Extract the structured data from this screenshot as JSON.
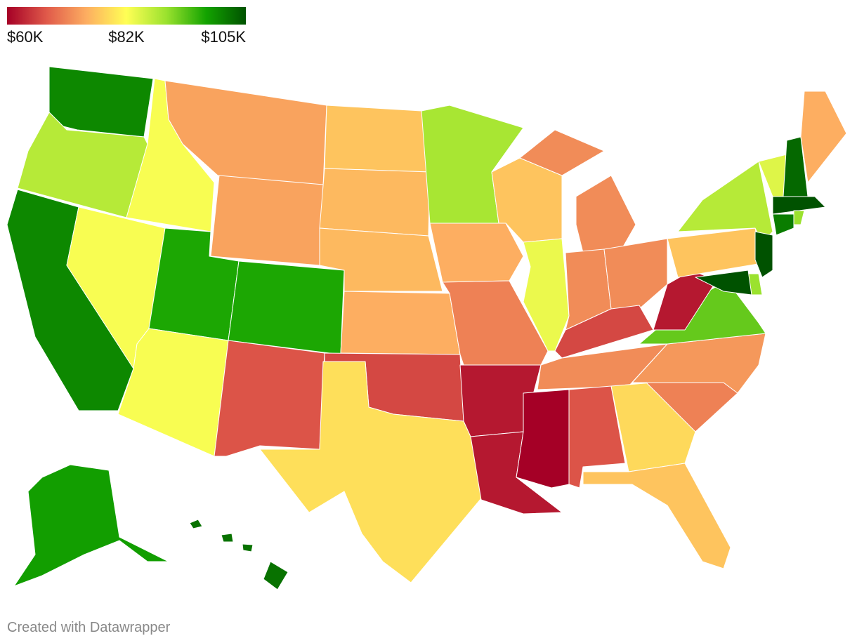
{
  "legend": {
    "ticks": [
      {
        "value": 60000,
        "label": "$60K"
      },
      {
        "value": 82000,
        "label": "$82K"
      },
      {
        "value": 105000,
        "label": "$105K"
      }
    ],
    "colors": [
      "#a50026",
      "#e05a4a",
      "#fdae61",
      "#ffff55",
      "#9be22e",
      "#13a300",
      "#005200"
    ]
  },
  "regions": {
    "values": [
      100000,
      88000,
      100000,
      83000,
      83000,
      74000,
      74000,
      97000,
      83000,
      97000,
      67000,
      77000,
      76000,
      76000,
      75000,
      66000,
      79500,
      89000,
      75000,
      71000,
      62000,
      62000,
      77000,
      84000,
      72000,
      72000,
      72000,
      66000,
      72000,
      60000,
      67000,
      79000,
      77000,
      71000,
      73000,
      93000,
      62000,
      77000,
      88000,
      85000,
      103000,
      75000,
      105000,
      101000,
      90000,
      105000,
      90000,
      105000,
      98000,
      102000
    ]
  },
  "footer": "Created with Datawrapper"
}
